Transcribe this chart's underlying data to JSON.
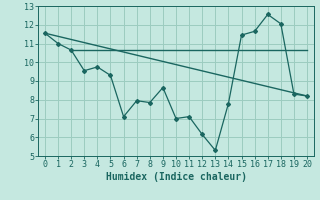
{
  "xlabel": "Humidex (Indice chaleur)",
  "bg_color": "#c5e8e0",
  "grid_color": "#9cccc0",
  "line_color": "#1a6660",
  "xlim": [
    -0.5,
    20.5
  ],
  "ylim": [
    5,
    13
  ],
  "xticks": [
    0,
    1,
    2,
    3,
    4,
    5,
    6,
    7,
    8,
    9,
    10,
    11,
    12,
    13,
    14,
    15,
    16,
    17,
    18,
    19,
    20
  ],
  "yticks": [
    5,
    6,
    7,
    8,
    9,
    10,
    11,
    12,
    13
  ],
  "line1_x": [
    0,
    1,
    2,
    3,
    4,
    5,
    6,
    7,
    8,
    9,
    10,
    11,
    12,
    13,
    14,
    15,
    16,
    17,
    18,
    19,
    20
  ],
  "line1_y": [
    11.55,
    11.0,
    10.65,
    9.55,
    9.75,
    9.3,
    7.1,
    7.95,
    7.85,
    8.65,
    7.0,
    7.1,
    6.15,
    5.3,
    7.8,
    11.45,
    11.65,
    12.55,
    12.05,
    8.3,
    8.2
  ],
  "line2_x": [
    0,
    20
  ],
  "line2_y": [
    11.55,
    8.2
  ],
  "line3_x": [
    2,
    13,
    20
  ],
  "line3_y": [
    10.65,
    10.65,
    10.65
  ],
  "xlabel_fontsize": 7,
  "tick_fontsize": 6
}
